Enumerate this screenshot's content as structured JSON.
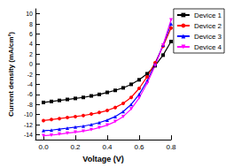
{
  "chart_data": {
    "type": "line",
    "x_label": "Voltage (V)",
    "y_label": "Current density (mA/cm²)",
    "x": [
      0,
      0.05,
      0.1,
      0.15,
      0.2,
      0.25,
      0.3,
      0.35,
      0.4,
      0.45,
      0.5,
      0.55,
      0.6,
      0.65,
      0.7,
      0.75,
      0.8
    ],
    "series": [
      {
        "name": "Device 1",
        "color": "#000000",
        "marker": "square",
        "values": [
          -7.6,
          -7.4,
          -7.2,
          -7.0,
          -6.8,
          -6.6,
          -6.3,
          -6.0,
          -5.6,
          -5.2,
          -4.7,
          -4.0,
          -3.1,
          -1.9,
          -0.3,
          1.8,
          4.5
        ]
      },
      {
        "name": "Device 2",
        "color": "#ff0000",
        "marker": "circle",
        "values": [
          -11.2,
          -11.0,
          -10.8,
          -10.6,
          -10.4,
          -10.2,
          -9.9,
          -9.6,
          -9.2,
          -8.6,
          -7.8,
          -6.6,
          -4.8,
          -2.5,
          0.3,
          3.6,
          7.2
        ]
      },
      {
        "name": "Device 3",
        "color": "#0000ff",
        "marker": "triangle",
        "values": [
          -13.2,
          -13.1,
          -12.9,
          -12.7,
          -12.5,
          -12.3,
          -12.0,
          -11.6,
          -11.1,
          -10.4,
          -9.4,
          -8.0,
          -6.0,
          -3.3,
          0,
          3.8,
          8.0
        ]
      },
      {
        "name": "Device 4",
        "color": "#ff00ff",
        "marker": "triangle_down",
        "values": [
          -14.2,
          -14.1,
          -13.9,
          -13.7,
          -13.5,
          -13.3,
          -13.0,
          -12.6,
          -12.1,
          -11.4,
          -10.4,
          -8.9,
          -6.7,
          -3.8,
          -0.3,
          3.8,
          8.8
        ]
      }
    ],
    "xlim": [
      -0.05,
      0.8
    ],
    "xticks": [
      {
        "value": 0,
        "label": "0.0"
      },
      0.2,
      0.4,
      0.6,
      0.8
    ],
    "ylim": [
      -15,
      11
    ],
    "yticks": [
      -14,
      -12,
      -10,
      -8,
      -6,
      -4,
      -2,
      0,
      2,
      4,
      6,
      8,
      10
    ],
    "grid": false,
    "legend": "right"
  }
}
